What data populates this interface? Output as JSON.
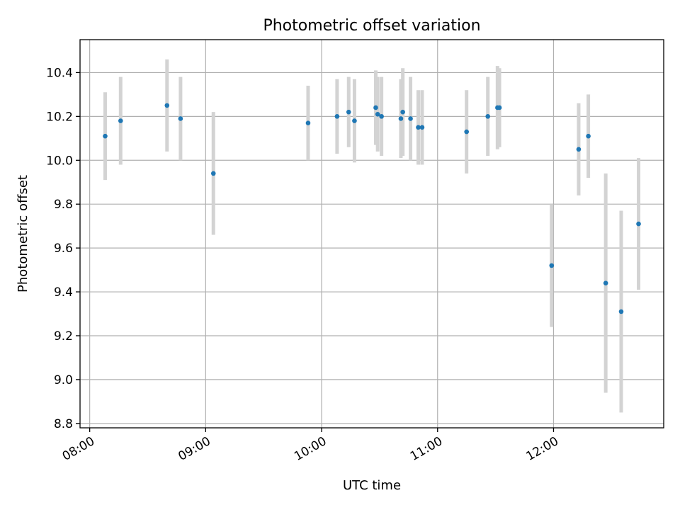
{
  "chart_data": {
    "type": "scatter",
    "title": "Photometric offset variation",
    "xlabel": "UTC time",
    "ylabel": "Photometric offset",
    "xlim": [
      "07:55",
      "12:57"
    ],
    "ylim": [
      8.78,
      10.55
    ],
    "x_ticks": [
      "08:00",
      "09:00",
      "10:00",
      "11:00",
      "12:00"
    ],
    "y_ticks": [
      "8.8",
      "9.0",
      "9.2",
      "9.4",
      "9.6",
      "9.8",
      "10.0",
      "10.2",
      "10.4"
    ],
    "grid": true,
    "errorbar_color": "#d3d3d3",
    "marker_color": "#1f77b4",
    "points": [
      {
        "x": "08:08",
        "y": 10.11,
        "err": 0.2
      },
      {
        "x": "08:16",
        "y": 10.18,
        "err": 0.2
      },
      {
        "x": "08:40",
        "y": 10.25,
        "err": 0.21
      },
      {
        "x": "08:47",
        "y": 10.19,
        "err": 0.19
      },
      {
        "x": "09:04",
        "y": 9.94,
        "err": 0.28
      },
      {
        "x": "09:53",
        "y": 10.17,
        "err": 0.17
      },
      {
        "x": "10:08",
        "y": 10.2,
        "err": 0.17
      },
      {
        "x": "10:14",
        "y": 10.22,
        "err": 0.16
      },
      {
        "x": "10:17",
        "y": 10.18,
        "err": 0.19
      },
      {
        "x": "10:28",
        "y": 10.24,
        "err": 0.17
      },
      {
        "x": "10:29",
        "y": 10.21,
        "err": 0.17
      },
      {
        "x": "10:31",
        "y": 10.2,
        "err": 0.18
      },
      {
        "x": "10:41",
        "y": 10.19,
        "err": 0.18
      },
      {
        "x": "10:42",
        "y": 10.22,
        "err": 0.2
      },
      {
        "x": "10:46",
        "y": 10.19,
        "err": 0.19
      },
      {
        "x": "10:50",
        "y": 10.15,
        "err": 0.17
      },
      {
        "x": "10:52",
        "y": 10.15,
        "err": 0.17
      },
      {
        "x": "11:15",
        "y": 10.13,
        "err": 0.19
      },
      {
        "x": "11:26",
        "y": 10.2,
        "err": 0.18
      },
      {
        "x": "11:31",
        "y": 10.24,
        "err": 0.19
      },
      {
        "x": "11:32",
        "y": 10.24,
        "err": 0.18
      },
      {
        "x": "11:59",
        "y": 9.52,
        "err": 0.28
      },
      {
        "x": "12:13",
        "y": 10.05,
        "err": 0.21
      },
      {
        "x": "12:18",
        "y": 10.11,
        "err": 0.19
      },
      {
        "x": "12:27",
        "y": 9.44,
        "err": 0.5
      },
      {
        "x": "12:35",
        "y": 9.31,
        "err": 0.46
      },
      {
        "x": "12:44",
        "y": 9.71,
        "err": 0.3
      }
    ]
  }
}
